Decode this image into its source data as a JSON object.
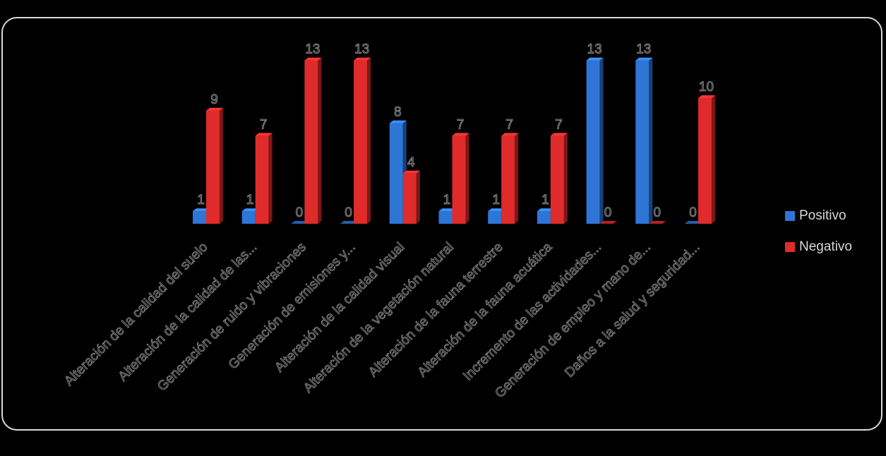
{
  "chart_data": {
    "type": "bar",
    "categories": [
      "Alteración de la calidad del suelo",
      "Alteración de la calidad de las...",
      "Generación de ruido y vibraciones",
      "Generación de emisiones y...",
      "Alteración de la calidad visual",
      "Alteración de la vegetación natural",
      "Alteración de la fauna terrestre",
      "Alteración de la fauna acuática",
      "Incremento de las actividades...",
      "Generación de empleo y mano de...",
      "Daños a la salud y seguridad..."
    ],
    "series": [
      {
        "name": "Positivo",
        "values": [
          1,
          1,
          0,
          0,
          8,
          1,
          1,
          1,
          13,
          13,
          0
        ],
        "color": "#2e75d6"
      },
      {
        "name": "Negativo",
        "values": [
          9,
          7,
          13,
          13,
          4,
          7,
          7,
          7,
          0,
          0,
          10
        ],
        "color": "#e02b2b"
      }
    ],
    "ylim": [
      0,
      13
    ],
    "grid": false,
    "data_labels": true,
    "legend_position": "right",
    "style": "3d-clustered-column"
  },
  "legend": {
    "items": [
      {
        "label": "Positivo",
        "color": "#2e75d6"
      },
      {
        "label": "Negativo",
        "color": "#e02b2b"
      }
    ]
  }
}
